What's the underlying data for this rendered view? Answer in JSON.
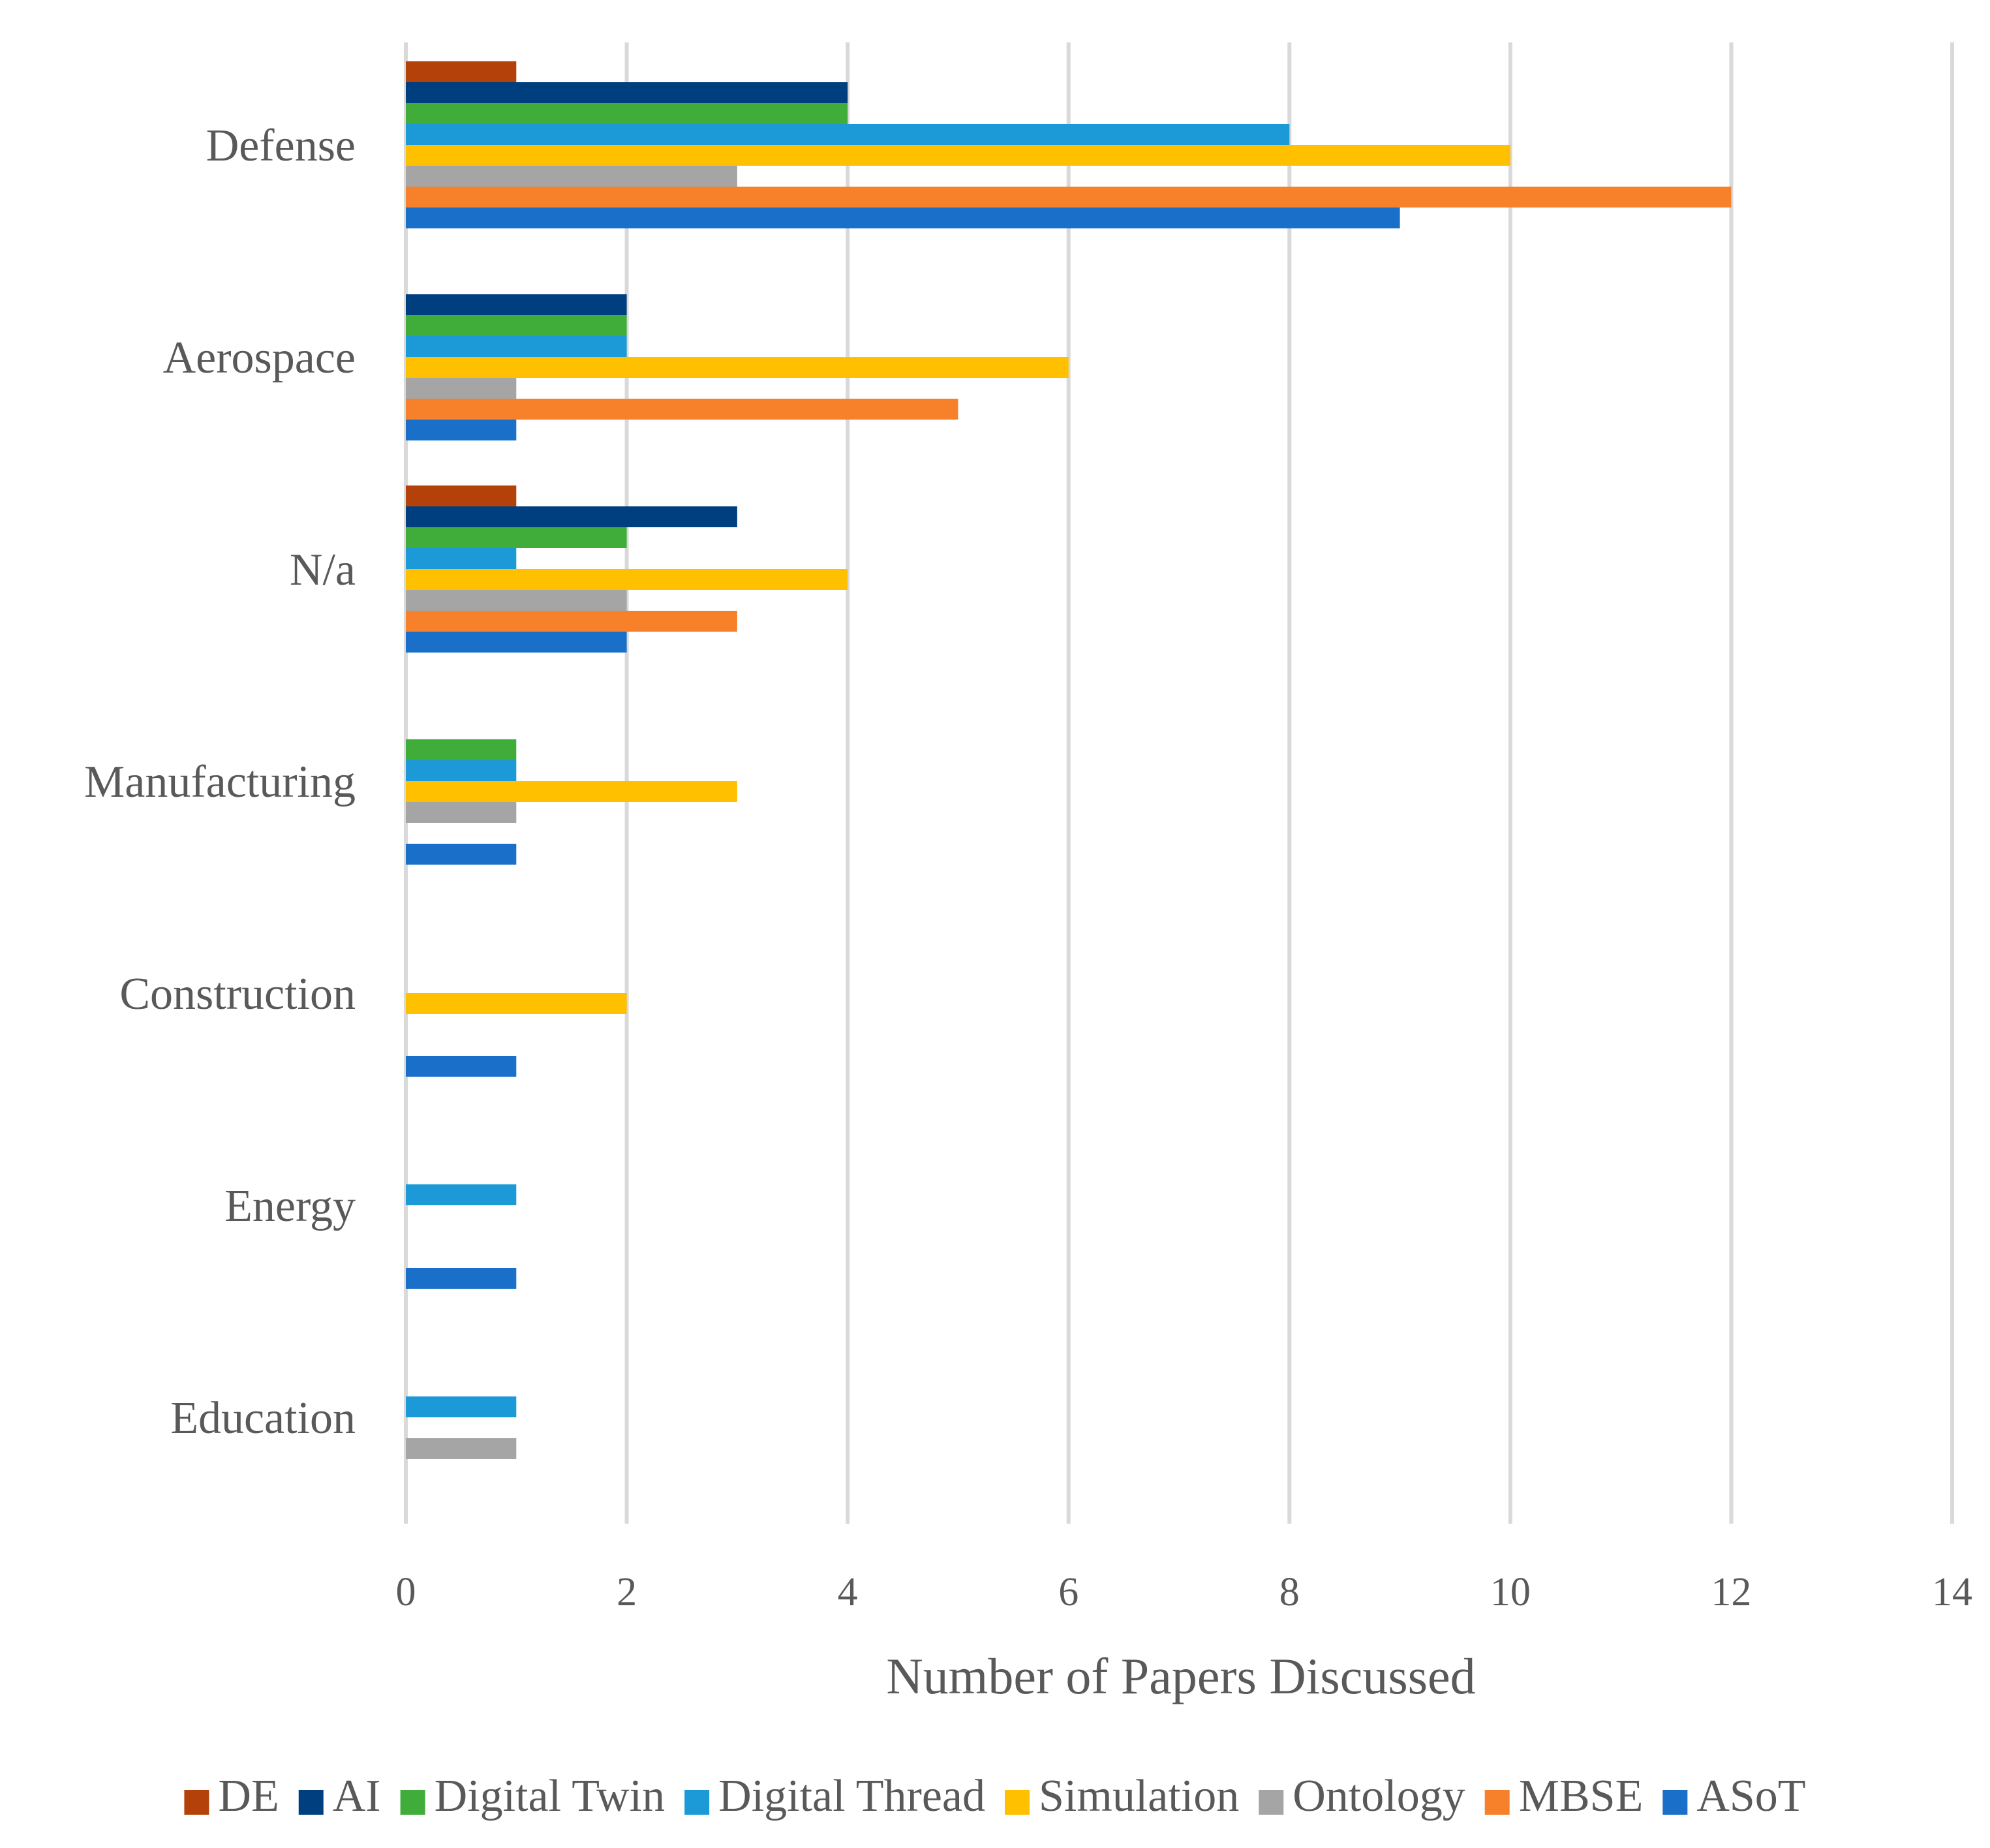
{
  "chart_data": {
    "type": "bar",
    "orientation": "horizontal",
    "title": "",
    "xlabel": "Number of Papers Discussed",
    "ylabel": "",
    "xlim": [
      0,
      14
    ],
    "xticks": [
      "0",
      "2",
      "4",
      "6",
      "8",
      "10",
      "12",
      "14"
    ],
    "grid": true,
    "legend_position": "bottom",
    "categories": [
      "Defense",
      "Aerospace",
      "N/a",
      "Manufacturing",
      "Construction",
      "Energy",
      "Education"
    ],
    "series": [
      {
        "name": "DE",
        "color": "#B5410A",
        "values": [
          1,
          0,
          1,
          0,
          0,
          0,
          0
        ]
      },
      {
        "name": "AI",
        "color": "#003F7F",
        "values": [
          4,
          2,
          3,
          0,
          0,
          0,
          0
        ]
      },
      {
        "name": "Digital Twin",
        "color": "#40AD3A",
        "values": [
          4,
          2,
          2,
          1,
          0,
          0,
          0
        ]
      },
      {
        "name": "Digital Thread",
        "color": "#1B9AD7",
        "values": [
          8,
          2,
          1,
          1,
          0,
          1,
          1
        ]
      },
      {
        "name": "Simulation",
        "color": "#FFC000",
        "values": [
          10,
          6,
          4,
          3,
          2,
          0,
          0
        ]
      },
      {
        "name": "Ontology",
        "color": "#A5A5A5",
        "values": [
          3,
          1,
          2,
          1,
          0,
          0,
          1
        ]
      },
      {
        "name": "MBSE",
        "color": "#F7812B",
        "values": [
          12,
          5,
          3,
          0,
          0,
          0,
          0
        ]
      },
      {
        "name": "ASoT",
        "color": "#1A70C8",
        "values": [
          9,
          1,
          2,
          1,
          1,
          1,
          0
        ]
      }
    ]
  }
}
